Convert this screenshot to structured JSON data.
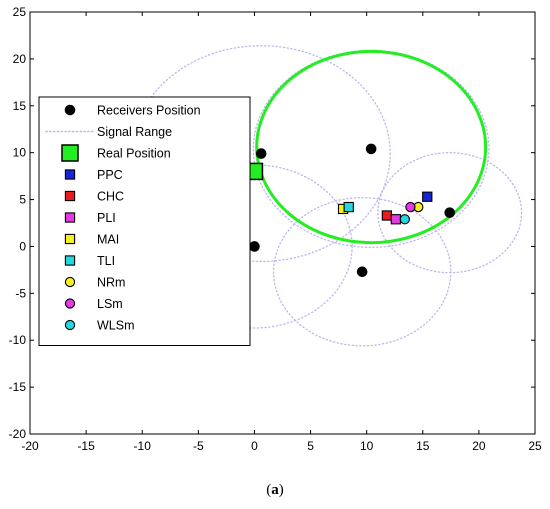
{
  "chart_data": {
    "type": "scatter",
    "xlim": [
      -20,
      25
    ],
    "ylim": [
      -20,
      25
    ],
    "x_ticks": [
      -20,
      -15,
      -10,
      -5,
      0,
      5,
      10,
      15,
      20,
      25
    ],
    "y_ticks": [
      -20,
      -15,
      -10,
      -5,
      0,
      5,
      10,
      15,
      20,
      25
    ],
    "grid": false,
    "legend_position": "left",
    "caption_open": "(",
    "caption_letter": "a",
    "caption_close": ")",
    "receivers": [
      {
        "x": 0.6,
        "y": 9.9
      },
      {
        "x": 10.4,
        "y": 10.4
      },
      {
        "x": 0.0,
        "y": 0.0
      },
      {
        "x": 9.6,
        "y": -2.7
      },
      {
        "x": 17.4,
        "y": 3.6
      }
    ],
    "signal_ranges": [
      {
        "cx": 0.6,
        "cy": 9.9,
        "r": 11.5
      },
      {
        "cx": 10.4,
        "cy": 10.4,
        "r": 10.5
      },
      {
        "cx": 0.0,
        "cy": 0.0,
        "r": 8.7
      },
      {
        "cx": 9.6,
        "cy": -2.7,
        "r": 7.9
      },
      {
        "cx": 17.4,
        "cy": 3.6,
        "r": 6.4
      }
    ],
    "real_position": {
      "x": 0.0,
      "y": 8.0
    },
    "estimate_region": {
      "cx": 10.4,
      "cy": 10.6,
      "rx": 10.2,
      "ry": 10.2
    },
    "estimates": [
      {
        "name": "PPC",
        "x": 15.4,
        "y": 5.3
      },
      {
        "name": "CHC",
        "x": 11.8,
        "y": 3.3
      },
      {
        "name": "PLI",
        "x": 12.6,
        "y": 2.9
      },
      {
        "name": "MAI",
        "x": 7.9,
        "y": 4.0
      },
      {
        "name": "TLI",
        "x": 8.4,
        "y": 4.2
      },
      {
        "name": "NRm",
        "x": 14.6,
        "y": 4.2
      },
      {
        "name": "LSm",
        "x": 13.9,
        "y": 4.2
      },
      {
        "name": "WLSm",
        "x": 13.4,
        "y": 2.9
      }
    ],
    "legend": [
      {
        "label": "Receivers Position",
        "marker": "dot",
        "color": "#000000"
      },
      {
        "label": "Signal Range",
        "marker": "dotted-line",
        "color": "#b9b9ee"
      },
      {
        "label": "Real Position",
        "marker": "big-square",
        "color": "#22ee22"
      },
      {
        "label": "PPC",
        "marker": "square",
        "color": "#1726d6"
      },
      {
        "label": "CHC",
        "marker": "square",
        "color": "#e81c1c"
      },
      {
        "label": "PLI",
        "marker": "square",
        "color": "#e43ae4"
      },
      {
        "label": "MAI",
        "marker": "square",
        "color": "#f4ee22"
      },
      {
        "label": "TLI",
        "marker": "square",
        "color": "#22d8e0"
      },
      {
        "label": "NRm",
        "marker": "circle",
        "color": "#f4ee22"
      },
      {
        "label": "LSm",
        "marker": "circle",
        "color": "#e43ae4"
      },
      {
        "label": "WLSm",
        "marker": "circle",
        "color": "#22d8e0"
      }
    ]
  }
}
